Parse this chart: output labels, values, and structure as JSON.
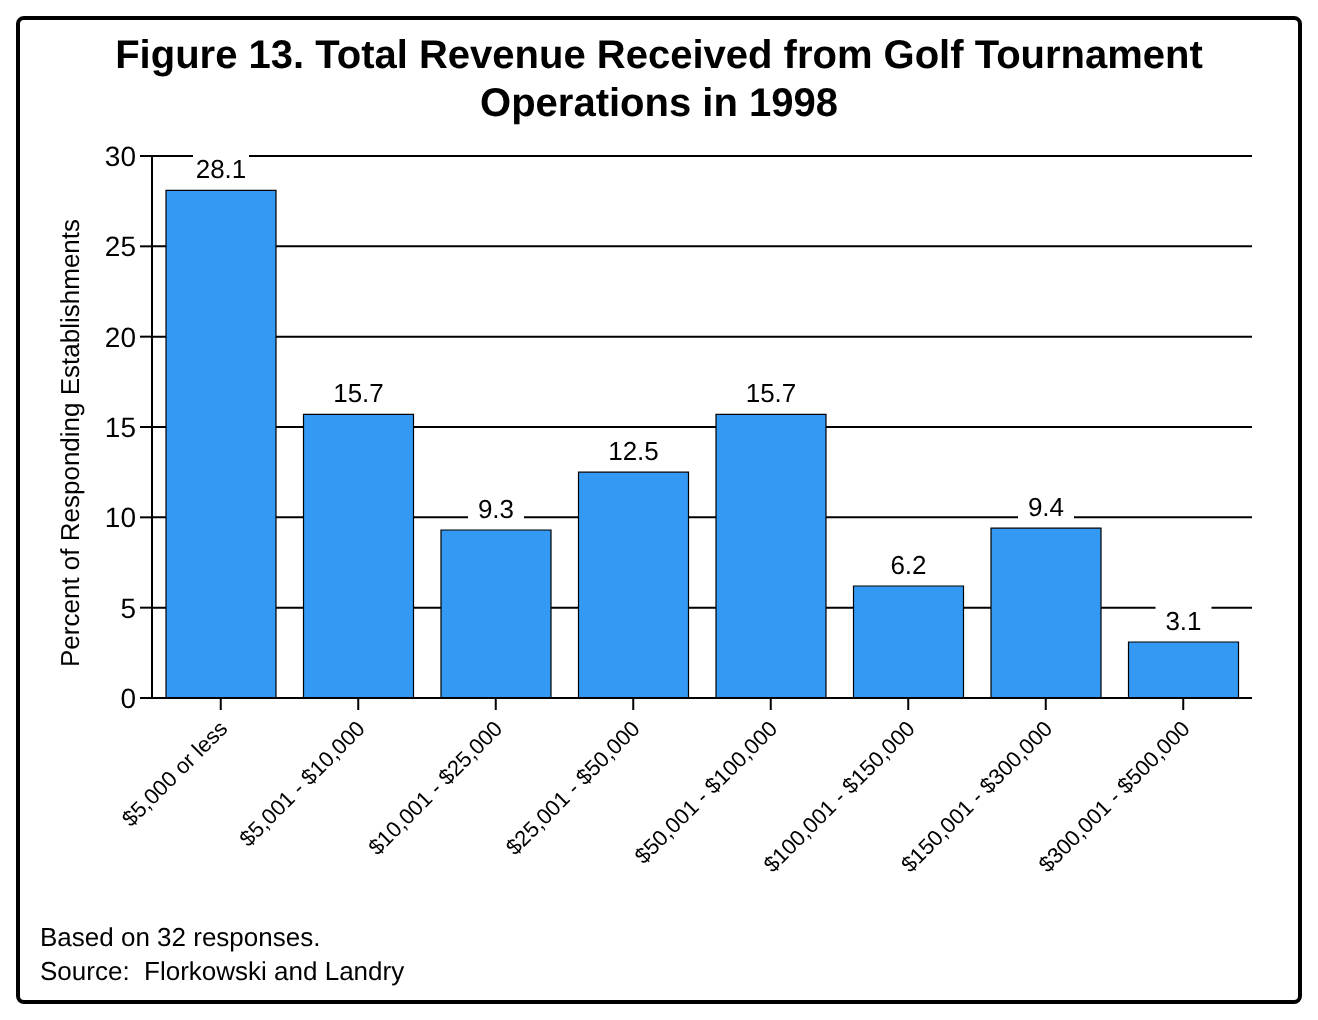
{
  "chart_data": {
    "type": "bar",
    "title": "Figure 13. Total Revenue Received from Golf Tournament Operations in 1998",
    "ylabel": "Percent of Responding Establishments",
    "categories": [
      "$5,000 or less",
      "$5,001 - $10,000",
      "$10,001 - $25,000",
      "$25,001 - $50,000",
      "$50,001 - $100,000",
      "$100,001 - $150,000",
      "$150,001 - $300,000",
      "$300,001 - $500,000"
    ],
    "values": [
      28.1,
      15.7,
      9.3,
      12.5,
      15.7,
      6.2,
      9.4,
      3.1
    ],
    "color": "#3399f3",
    "ylim": [
      0,
      30
    ],
    "yticks": [
      0,
      5,
      10,
      15,
      20,
      25,
      30
    ],
    "grid": "y",
    "data_labels": true,
    "annotations": [
      "Based on 32 responses.",
      "Source:  Florkowski and Landry"
    ]
  }
}
